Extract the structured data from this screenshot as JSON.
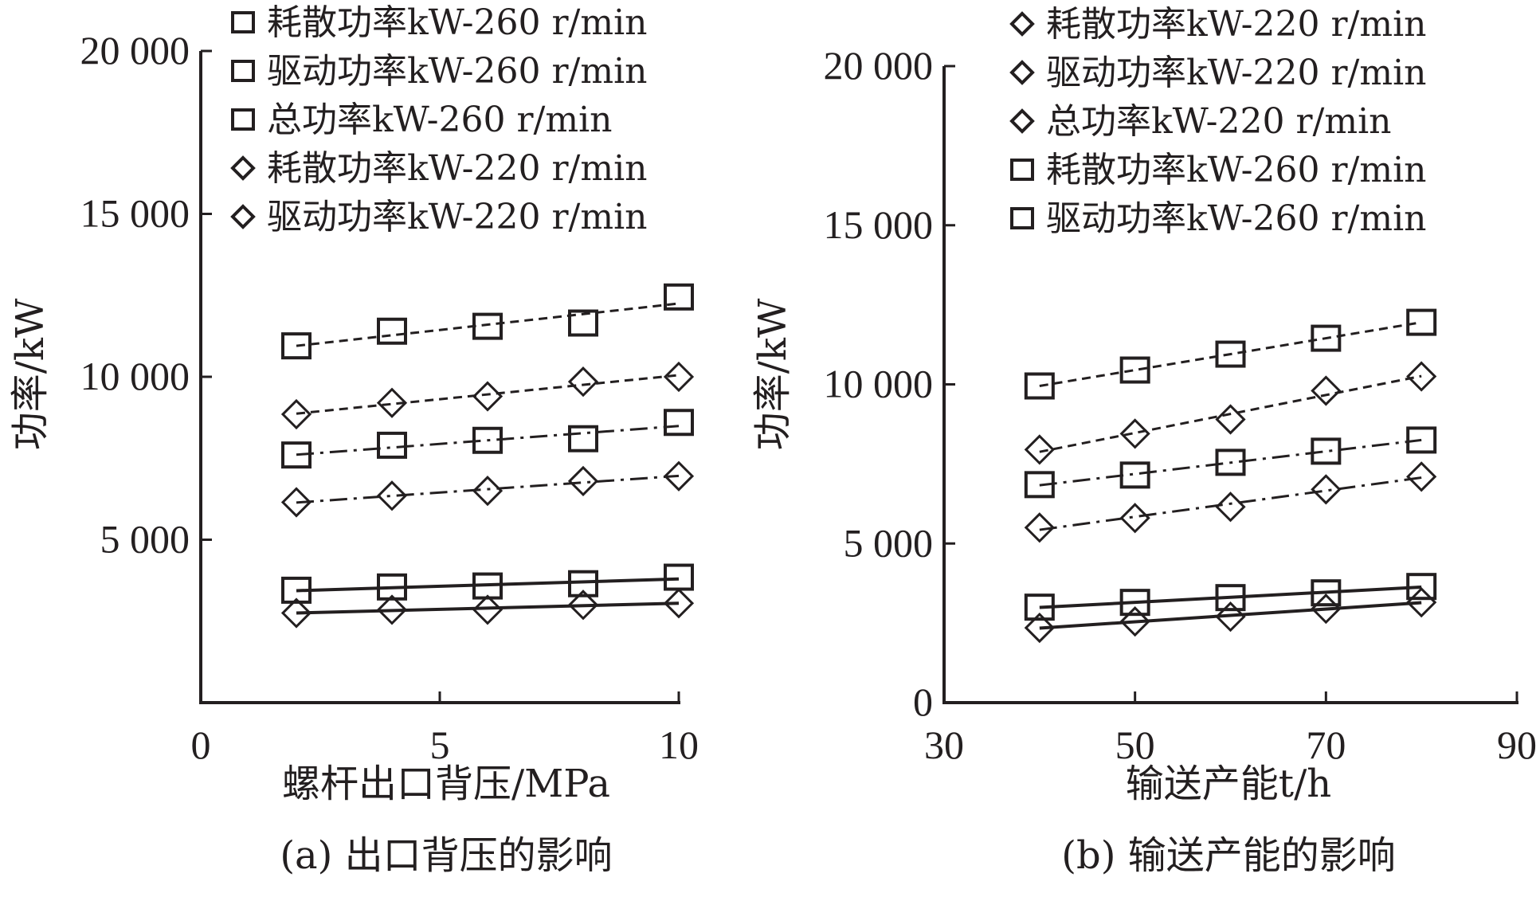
{
  "charts": [
    {
      "caption": "(a) 出口背压的影响",
      "chart_data": {
        "type": "line",
        "xlabel": "螺杆出口背压/MPa",
        "ylabel": "功率/kW",
        "xlim": [
          0,
          10
        ],
        "ylim": [
          0,
          20000
        ],
        "x_ticks": [
          0,
          5,
          10
        ],
        "x_tick_labels": [
          "0",
          "5",
          "10"
        ],
        "y_ticks": [
          5000,
          10000,
          15000,
          20000
        ],
        "y_tick_labels": [
          "5 000",
          "10 000",
          "15 000",
          "20 000"
        ],
        "grid": false,
        "legend_position": "top-right",
        "x": [
          2,
          4,
          6,
          8,
          10
        ],
        "series": [
          {
            "name": "耗散功率kW-260 r/min",
            "marker": "square",
            "line": "solid",
            "values": [
              3450,
              3550,
              3580,
              3650,
              3850
            ]
          },
          {
            "name": "驱动功率kW-260 r/min",
            "marker": "square",
            "line": "dashdot",
            "values": [
              7600,
              7900,
              8050,
              8100,
              8600
            ]
          },
          {
            "name": "总功率kW-260 r/min",
            "marker": "square",
            "line": "dashed",
            "values": [
              10950,
              11400,
              11550,
              11650,
              12450
            ]
          },
          {
            "name": "耗散功率kW-220 r/min",
            "marker": "diamond",
            "line": "solid",
            "values": [
              2750,
              2850,
              2850,
              3000,
              3050
            ]
          },
          {
            "name": "驱动功率kW-220 r/min",
            "marker": "diamond",
            "line": "dashdot",
            "values": [
              6150,
              6350,
              6500,
              6800,
              6950
            ]
          },
          {
            "name": "",
            "marker": "diamond",
            "line": "dashed",
            "values": [
              8850,
              9200,
              9400,
              9850,
              10000
            ]
          }
        ]
      }
    },
    {
      "caption": "(b) 输送产能的影响",
      "chart_data": {
        "type": "line",
        "xlabel": "输送产能t/h",
        "ylabel": "功率/kW",
        "xlim": [
          30,
          90
        ],
        "ylim": [
          0,
          20000
        ],
        "x_ticks": [
          30,
          50,
          70,
          90
        ],
        "x_tick_labels": [
          "30",
          "50",
          "70",
          "90"
        ],
        "y_ticks": [
          0,
          5000,
          10000,
          15000,
          20000
        ],
        "y_tick_labels": [
          "0",
          "5 000",
          "10 000",
          "15 000",
          "20 000"
        ],
        "grid": false,
        "legend_position": "top-right",
        "x": [
          40,
          50,
          60,
          70,
          80
        ],
        "series": [
          {
            "name": "耗散功率kW-220 r/min",
            "marker": "diamond",
            "line": "solid",
            "values": [
              2350,
              2550,
              2700,
              2950,
              3150
            ]
          },
          {
            "name": "驱动功率kW-220 r/min",
            "marker": "diamond",
            "line": "dashdot",
            "values": [
              5500,
              5800,
              6150,
              6700,
              7100
            ]
          },
          {
            "name": "总功率kW-220 r/min",
            "marker": "diamond",
            "line": "dashed",
            "values": [
              7950,
              8450,
              8900,
              9800,
              10250
            ]
          },
          {
            "name": "耗散功率kW-260 r/min",
            "marker": "square",
            "line": "solid",
            "values": [
              3000,
              3150,
              3300,
              3450,
              3650
            ]
          },
          {
            "name": "驱动功率kW-260 r/min",
            "marker": "square",
            "line": "dashdot",
            "values": [
              6850,
              7150,
              7550,
              7900,
              8250
            ]
          },
          {
            "name": "",
            "marker": "square",
            "line": "dashed",
            "values": [
              9950,
              10450,
              10950,
              11450,
              11950
            ]
          }
        ]
      }
    }
  ]
}
